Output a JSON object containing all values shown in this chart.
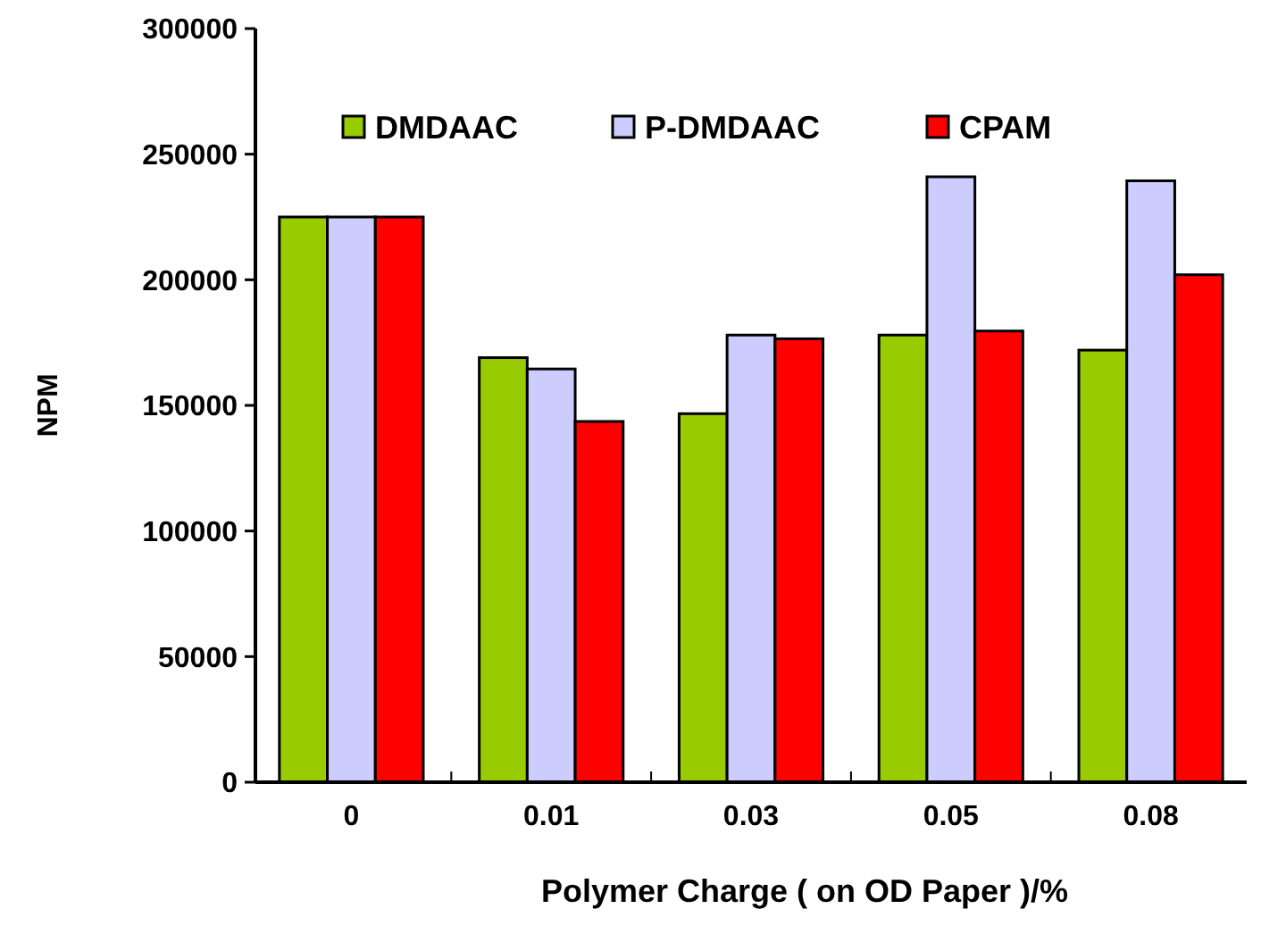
{
  "chart_data": {
    "type": "bar",
    "xlabel": "Polymer Charge ( on OD Paper )/%",
    "ylabel": "NPM",
    "categories": [
      "0",
      "0.01",
      "0.03",
      "0.05",
      "0.08"
    ],
    "series": [
      {
        "name": "DMDAAC",
        "color": "#99cc00",
        "values": [
          225000,
          169000,
          146700,
          178000,
          172000
        ]
      },
      {
        "name": "P-DMDAAC",
        "color": "#ccccff",
        "values": [
          225000,
          164500,
          178000,
          241000,
          239400
        ]
      },
      {
        "name": "CPAM",
        "color": "#ff0000",
        "values": [
          225000,
          143600,
          176500,
          179600,
          202000
        ]
      }
    ],
    "ylim": [
      0,
      300000
    ],
    "yticks": [
      0,
      50000,
      100000,
      150000,
      200000,
      250000,
      300000
    ],
    "grid": false,
    "legend": "top"
  }
}
